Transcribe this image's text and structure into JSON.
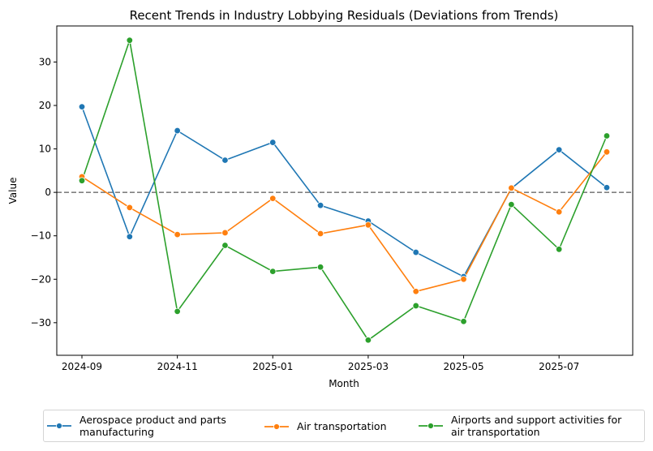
{
  "chart_data": {
    "type": "line",
    "title": "Recent Trends in Industry Lobbying Residuals (Deviations from Trends)",
    "xlabel": "Month",
    "ylabel": "Value",
    "x": [
      "2024-09",
      "2024-10",
      "2024-11",
      "2024-12",
      "2025-01",
      "2025-02",
      "2025-03",
      "2025-04",
      "2025-05",
      "2025-06",
      "2025-07",
      "2025-08"
    ],
    "x_ticks": [
      "2024-09",
      "2024-11",
      "2025-01",
      "2025-03",
      "2025-05",
      "2025-07"
    ],
    "y_ticks": [
      30,
      20,
      10,
      0,
      -10,
      -20,
      -30
    ],
    "y_tick_labels": [
      "30",
      "20",
      "10",
      "0",
      "−10",
      "−20",
      "−30"
    ],
    "ylim": [
      -37.5,
      38.3
    ],
    "grid": false,
    "reference_line": {
      "y": 0,
      "style": "dashed",
      "color": "#808080"
    },
    "legend_position": "bottom-center",
    "series": [
      {
        "name": "Aerospace product and parts manufacturing",
        "legend_lines": [
          "Aerospace product and parts",
          "manufacturing"
        ],
        "color": "#1f77b4",
        "values": [
          19.7,
          -10.2,
          14.2,
          7.4,
          11.5,
          -3.0,
          -6.6,
          -13.8,
          -19.4,
          0.9,
          9.8,
          1.1
        ]
      },
      {
        "name": "Air transportation",
        "legend_lines": [
          "Air transportation"
        ],
        "color": "#ff7f0e",
        "values": [
          3.6,
          -3.5,
          -9.7,
          -9.3,
          -1.4,
          -9.5,
          -7.5,
          -22.8,
          -20.0,
          1.0,
          -4.5,
          9.3
        ]
      },
      {
        "name": "Airports and support activities for air transportation",
        "legend_lines": [
          "Airports and support activities for",
          "air transportation"
        ],
        "color": "#2ca02c",
        "values": [
          2.7,
          35.0,
          -27.4,
          -12.2,
          -18.2,
          -17.2,
          -34.0,
          -26.1,
          -29.7,
          -2.8,
          -13.1,
          13.0
        ]
      }
    ]
  }
}
